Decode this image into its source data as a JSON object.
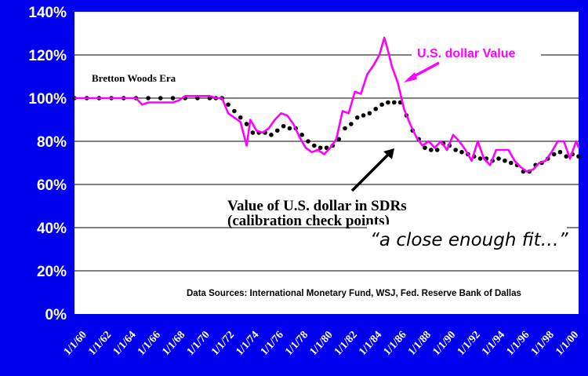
{
  "chart_data": {
    "type": "line",
    "ylim": [
      0,
      140
    ],
    "yticks": [
      "0%",
      "20%",
      "40%",
      "60%",
      "80%",
      "100%",
      "120%",
      "140%"
    ],
    "xlim": [
      1960,
      2001
    ],
    "xticks": [
      "1/1/60",
      "1/1/62",
      "1/1/64",
      "1/1/66",
      "1/1/68",
      "1/1/70",
      "1/1/72",
      "1/1/74",
      "1/1/76",
      "1/1/78",
      "1/1/80",
      "1/1/82",
      "1/1/84",
      "1/1/86",
      "1/1/88",
      "1/1/90",
      "1/1/92",
      "1/1/94",
      "1/1/96",
      "1/1/98",
      "1/1/00"
    ],
    "grid": true,
    "series": [
      {
        "name": "U.S. dollar Value",
        "style": "line",
        "color": "#ff00ff",
        "x": [
          1960,
          1961,
          1962,
          1963,
          1964,
          1965,
          1965.5,
          1966,
          1967,
          1968,
          1968.5,
          1969,
          1970,
          1971,
          1971.5,
          1972,
          1972.5,
          1973,
          1973.5,
          1974,
          1974.3,
          1974.8,
          1975.3,
          1975.8,
          1976.3,
          1976.8,
          1977.3,
          1977.8,
          1978.3,
          1978.8,
          1979.3,
          1979.8,
          1980.3,
          1980.8,
          1981.3,
          1981.8,
          1982.3,
          1982.8,
          1983.3,
          1983.8,
          1984.3,
          1984.8,
          1985.2,
          1985.5,
          1985.8,
          1986.3,
          1986.8,
          1987.3,
          1987.8,
          1988.3,
          1988.8,
          1989.3,
          1989.8,
          1990.3,
          1990.8,
          1991.3,
          1991.8,
          1992.3,
          1992.8,
          1993.3,
          1993.8,
          1994.3,
          1994.8,
          1995.3,
          1995.8,
          1996.3,
          1996.8,
          1997.3,
          1997.8,
          1998.3,
          1998.8,
          1999.3,
          1999.8,
          2000.3,
          2000.8,
          2001
        ],
        "values": [
          100,
          100,
          100,
          100,
          100,
          100,
          97,
          98,
          98,
          98,
          99,
          101,
          101,
          101,
          100,
          100,
          93,
          91,
          89,
          78,
          90,
          85,
          84,
          86,
          90,
          93,
          92,
          88,
          82,
          77,
          75,
          76,
          74,
          77,
          81,
          94,
          93,
          103,
          102,
          111,
          115,
          120,
          128,
          122,
          115,
          107,
          95,
          88,
          82,
          78,
          80,
          77,
          80,
          76,
          83,
          80,
          76,
          71,
          80,
          72,
          69,
          76,
          76,
          76,
          71,
          68,
          66,
          67,
          70,
          71,
          75,
          80,
          80,
          72,
          80,
          77
        ],
        "label": "U.S. dollar Value"
      },
      {
        "name": "Value of U.S. dollar in SDRs",
        "style": "dots",
        "color": "#000000",
        "x": [
          1960,
          1961,
          1962,
          1963,
          1964,
          1965,
          1966,
          1967,
          1968,
          1969,
          1970,
          1971,
          1971.5,
          1972,
          1972.5,
          1973,
          1973.5,
          1974,
          1974.5,
          1975,
          1975.5,
          1976,
          1976.5,
          1977,
          1977.5,
          1978,
          1978.5,
          1979,
          1979.5,
          1980,
          1980.5,
          1981,
          1981.5,
          1982,
          1982.5,
          1983,
          1983.5,
          1984,
          1984.5,
          1985,
          1985.5,
          1986,
          1986.5,
          1987,
          1987.5,
          1988,
          1988.5,
          1989,
          1989.5,
          1990,
          1990.5,
          1991,
          1991.5,
          1992,
          1992.5,
          1993,
          1993.5,
          1994,
          1994.5,
          1995,
          1995.5,
          1996,
          1996.5,
          1997,
          1997.5,
          1998,
          1998.5,
          1999,
          1999.5,
          2000,
          2000.5,
          2001
        ],
        "values": [
          100,
          100,
          100,
          100,
          100,
          100,
          100,
          100,
          100,
          100,
          100,
          100,
          100,
          100,
          97,
          94,
          91,
          88,
          84,
          84,
          84,
          83,
          85,
          87,
          86,
          86,
          83,
          80,
          78,
          77,
          77,
          78,
          81,
          86,
          88,
          91,
          92,
          93,
          95,
          97,
          98,
          98,
          98,
          92,
          85,
          81,
          77,
          76,
          76,
          79,
          78,
          76,
          75,
          74,
          73,
          72,
          72,
          71,
          72,
          71,
          70,
          69,
          66,
          66,
          69,
          70,
          72,
          74,
          75,
          73,
          74,
          73
        ]
      }
    ],
    "annotations": {
      "bretton": "Bretton Woods Era",
      "usd": "U.S. dollar Value",
      "sdr_line1": "Value of U.S. dollar in SDRs",
      "sdr_line2": "(calibration check points)",
      "quote": "“a close enough fit…”",
      "sources": "Data Sources: International Monetary Fund, WSJ, Fed. Reserve Bank of Dallas"
    },
    "colors": {
      "background": "#0000ee",
      "plot": "#ffffff",
      "usd_line": "#ff00ff",
      "sdr_dots": "#000000"
    }
  }
}
